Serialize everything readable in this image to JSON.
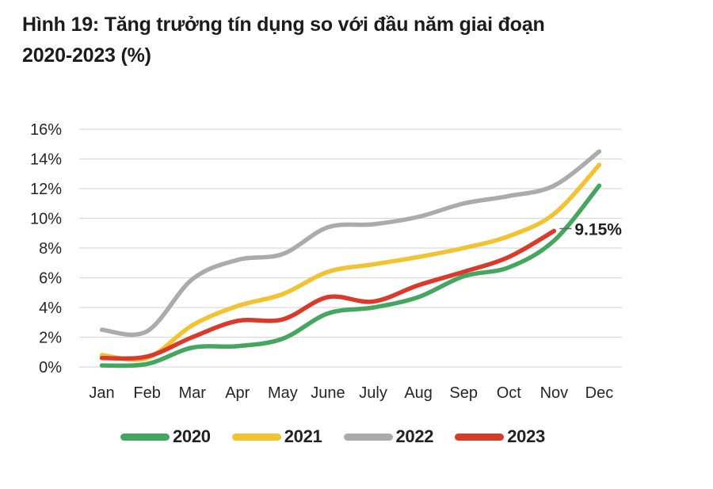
{
  "title": {
    "line1": "Hình 19: Tăng trưởng tín dụng so với đầu năm giai đoạn",
    "line2": "2020-2023 (%)"
  },
  "colors": {
    "grid": "#d9d9d9",
    "axis_text": "#262626",
    "title_text": "#1c1c1c",
    "annotation_text": "#222222",
    "annotation_leader": "#666666",
    "background": "#ffffff"
  },
  "chart_data": {
    "type": "line",
    "title": "Hình 19: Tăng trưởng tín dụng so với đầu năm giai đoạn 2020-2023 (%)",
    "categories": [
      "Jan",
      "Feb",
      "Mar",
      "Apr",
      "May",
      "June",
      "July",
      "Aug",
      "Sep",
      "Oct",
      "Nov",
      "Dec"
    ],
    "xlabel": "",
    "ylabel": "",
    "y_axis": {
      "min": 0,
      "max": 16,
      "step": 2,
      "tick_labels": [
        "0%",
        "2%",
        "4%",
        "6%",
        "8%",
        "10%",
        "12%",
        "14%",
        "16%"
      ]
    },
    "grid": "horizontal",
    "line_style": "smooth",
    "legend_position": "bottom",
    "series": [
      {
        "name": "2020",
        "color": "#45a75f",
        "values": [
          0.1,
          0.2,
          1.3,
          1.4,
          1.9,
          3.6,
          4.0,
          4.7,
          6.1,
          6.7,
          8.5,
          12.2
        ]
      },
      {
        "name": "2021",
        "color": "#f2c233",
        "values": [
          0.8,
          0.6,
          2.8,
          4.1,
          4.9,
          6.4,
          6.9,
          7.4,
          8.0,
          8.8,
          10.3,
          13.6
        ]
      },
      {
        "name": "2022",
        "color": "#ababab",
        "values": [
          2.5,
          2.4,
          5.9,
          7.2,
          7.6,
          9.4,
          9.6,
          10.1,
          11.0,
          11.5,
          12.2,
          14.5
        ]
      },
      {
        "name": "2023",
        "color": "#db3a2b",
        "values": [
          0.6,
          0.7,
          2.0,
          3.1,
          3.2,
          4.7,
          4.4,
          5.5,
          6.4,
          7.4,
          9.15
        ]
      }
    ],
    "annotation": {
      "text": "9.15%",
      "series": "2023",
      "category": "Nov",
      "value": 9.15
    }
  }
}
